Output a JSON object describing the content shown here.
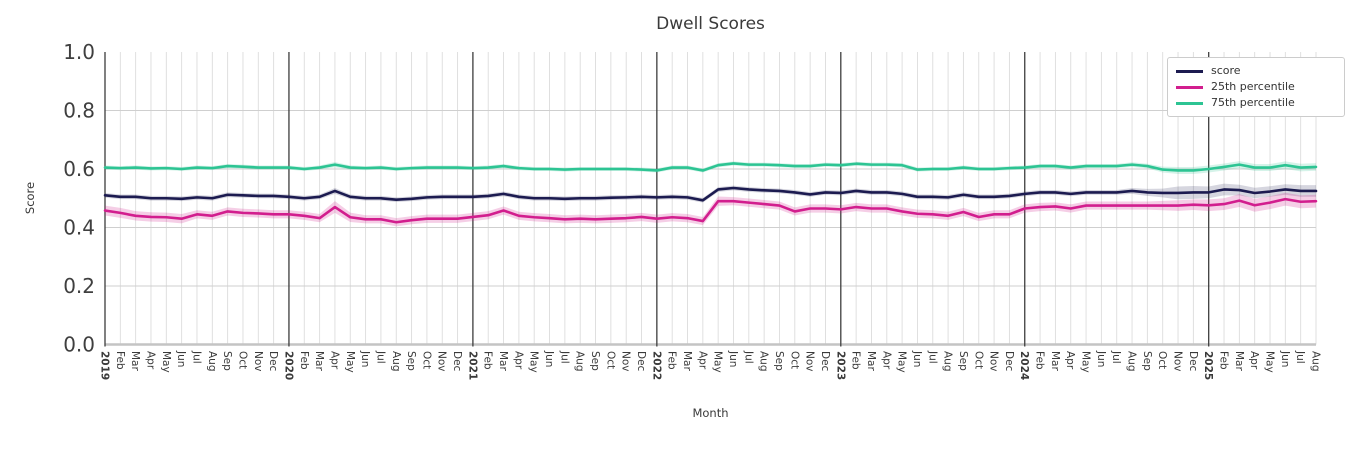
{
  "chart_data": {
    "type": "line",
    "title": "Dwell Scores",
    "xlabel": "Month",
    "ylabel": "Score",
    "ylim": [
      0.0,
      1.0
    ],
    "ytick_labels": [
      "0.0",
      "0.2",
      "0.4",
      "0.6",
      "0.8",
      "1.0"
    ],
    "ytick_values": [
      0.0,
      0.2,
      0.4,
      0.6,
      0.8,
      1.0
    ],
    "grid": "light monthly vertical gridlines, horizontal gridlines every 0.2, dark vertical separators at each January",
    "legend_position": "upper right",
    "x_labels": [
      "2019",
      "Feb",
      "Mar",
      "Apr",
      "May",
      "Jun",
      "Jul",
      "Aug",
      "Sep",
      "Oct",
      "Nov",
      "Dec",
      "2020",
      "Feb",
      "Mar",
      "Apr",
      "May",
      "Jun",
      "Jul",
      "Aug",
      "Sep",
      "Oct",
      "Nov",
      "Dec",
      "2021",
      "Feb",
      "Mar",
      "Apr",
      "May",
      "Jun",
      "Jul",
      "Aug",
      "Sep",
      "Oct",
      "Nov",
      "Dec",
      "2022",
      "Feb",
      "Mar",
      "Apr",
      "May",
      "Jun",
      "Jul",
      "Aug",
      "Sep",
      "Oct",
      "Nov",
      "Dec",
      "2023",
      "Feb",
      "Mar",
      "Apr",
      "May",
      "Jun",
      "Jul",
      "Aug",
      "Sep",
      "Oct",
      "Nov",
      "Dec",
      "2024",
      "Feb",
      "Mar",
      "Apr",
      "May",
      "Jun",
      "Jul",
      "Aug",
      "Sep",
      "Oct",
      "Nov",
      "Dec",
      "2025",
      "Feb",
      "Mar",
      "Apr",
      "May",
      "Jun",
      "Jul",
      "Aug"
    ],
    "year_start_indices": [
      0,
      12,
      24,
      36,
      48,
      60,
      72
    ],
    "series": [
      {
        "name": "score",
        "color": "#1c1b50",
        "band_opacity": 0.18,
        "values": [
          0.51,
          0.505,
          0.505,
          0.5,
          0.5,
          0.498,
          0.503,
          0.5,
          0.512,
          0.51,
          0.508,
          0.508,
          0.505,
          0.5,
          0.505,
          0.525,
          0.505,
          0.5,
          0.5,
          0.495,
          0.498,
          0.503,
          0.505,
          0.505,
          0.505,
          0.508,
          0.515,
          0.505,
          0.5,
          0.5,
          0.498,
          0.5,
          0.5,
          0.502,
          0.503,
          0.505,
          0.503,
          0.505,
          0.503,
          0.493,
          0.53,
          0.535,
          0.53,
          0.527,
          0.525,
          0.52,
          0.513,
          0.52,
          0.518,
          0.525,
          0.52,
          0.52,
          0.515,
          0.505,
          0.505,
          0.503,
          0.512,
          0.505,
          0.505,
          0.508,
          0.515,
          0.52,
          0.52,
          0.515,
          0.52,
          0.52,
          0.52,
          0.525,
          0.52,
          0.518,
          0.518,
          0.52,
          0.52,
          0.53,
          0.528,
          0.518,
          0.523,
          0.53,
          0.525,
          0.525
        ],
        "band": [
          0.008,
          0.008,
          0.008,
          0.008,
          0.008,
          0.008,
          0.008,
          0.008,
          0.008,
          0.008,
          0.008,
          0.008,
          0.008,
          0.008,
          0.008,
          0.01,
          0.008,
          0.008,
          0.008,
          0.008,
          0.008,
          0.008,
          0.008,
          0.008,
          0.008,
          0.008,
          0.008,
          0.008,
          0.008,
          0.008,
          0.008,
          0.008,
          0.008,
          0.008,
          0.008,
          0.008,
          0.008,
          0.008,
          0.008,
          0.008,
          0.008,
          0.008,
          0.008,
          0.008,
          0.008,
          0.008,
          0.008,
          0.008,
          0.008,
          0.008,
          0.008,
          0.008,
          0.008,
          0.008,
          0.008,
          0.008,
          0.008,
          0.008,
          0.008,
          0.008,
          0.008,
          0.008,
          0.008,
          0.008,
          0.008,
          0.008,
          0.008,
          0.01,
          0.012,
          0.015,
          0.022,
          0.022,
          0.02,
          0.02,
          0.018,
          0.018,
          0.018,
          0.018,
          0.02,
          0.02
        ]
      },
      {
        "name": "25th percentile",
        "color": "#d21e8e",
        "band_opacity": 0.22,
        "values": [
          0.458,
          0.45,
          0.44,
          0.436,
          0.435,
          0.43,
          0.445,
          0.44,
          0.455,
          0.45,
          0.448,
          0.445,
          0.445,
          0.44,
          0.432,
          0.47,
          0.435,
          0.428,
          0.428,
          0.418,
          0.425,
          0.43,
          0.43,
          0.43,
          0.436,
          0.442,
          0.458,
          0.44,
          0.435,
          0.432,
          0.428,
          0.43,
          0.428,
          0.43,
          0.432,
          0.436,
          0.43,
          0.435,
          0.432,
          0.422,
          0.49,
          0.49,
          0.485,
          0.48,
          0.475,
          0.455,
          0.465,
          0.465,
          0.462,
          0.47,
          0.465,
          0.465,
          0.455,
          0.447,
          0.445,
          0.44,
          0.453,
          0.436,
          0.445,
          0.445,
          0.465,
          0.47,
          0.472,
          0.465,
          0.475,
          0.475,
          0.475,
          0.475,
          0.475,
          0.475,
          0.475,
          0.478,
          0.476,
          0.48,
          0.492,
          0.476,
          0.485,
          0.497,
          0.488,
          0.49
        ],
        "band": [
          0.017,
          0.017,
          0.016,
          0.016,
          0.016,
          0.016,
          0.014,
          0.014,
          0.014,
          0.014,
          0.014,
          0.014,
          0.014,
          0.014,
          0.014,
          0.02,
          0.016,
          0.014,
          0.014,
          0.014,
          0.014,
          0.014,
          0.014,
          0.014,
          0.014,
          0.014,
          0.014,
          0.014,
          0.014,
          0.014,
          0.014,
          0.014,
          0.014,
          0.014,
          0.014,
          0.014,
          0.014,
          0.014,
          0.014,
          0.014,
          0.016,
          0.014,
          0.014,
          0.014,
          0.014,
          0.014,
          0.014,
          0.014,
          0.014,
          0.014,
          0.014,
          0.014,
          0.014,
          0.014,
          0.014,
          0.014,
          0.014,
          0.014,
          0.014,
          0.014,
          0.014,
          0.014,
          0.014,
          0.014,
          0.014,
          0.014,
          0.014,
          0.014,
          0.014,
          0.016,
          0.018,
          0.018,
          0.02,
          0.02,
          0.022,
          0.022,
          0.022,
          0.022,
          0.022,
          0.022
        ]
      },
      {
        "name": "75th percentile",
        "color": "#2dc493",
        "band_opacity": 0.2,
        "values": [
          0.605,
          0.603,
          0.605,
          0.602,
          0.603,
          0.6,
          0.605,
          0.603,
          0.61,
          0.608,
          0.605,
          0.605,
          0.605,
          0.6,
          0.605,
          0.615,
          0.605,
          0.603,
          0.605,
          0.6,
          0.603,
          0.605,
          0.605,
          0.605,
          0.603,
          0.605,
          0.61,
          0.603,
          0.6,
          0.6,
          0.598,
          0.6,
          0.6,
          0.6,
          0.6,
          0.598,
          0.595,
          0.605,
          0.605,
          0.595,
          0.613,
          0.619,
          0.615,
          0.615,
          0.613,
          0.61,
          0.61,
          0.615,
          0.613,
          0.618,
          0.615,
          0.615,
          0.613,
          0.598,
          0.6,
          0.6,
          0.605,
          0.6,
          0.6,
          0.603,
          0.605,
          0.61,
          0.61,
          0.605,
          0.61,
          0.61,
          0.61,
          0.615,
          0.61,
          0.598,
          0.595,
          0.595,
          0.6,
          0.607,
          0.615,
          0.605,
          0.605,
          0.613,
          0.605,
          0.607
        ],
        "band": [
          0.007,
          0.007,
          0.007,
          0.007,
          0.007,
          0.007,
          0.007,
          0.007,
          0.007,
          0.007,
          0.007,
          0.007,
          0.007,
          0.007,
          0.007,
          0.009,
          0.007,
          0.007,
          0.007,
          0.007,
          0.007,
          0.007,
          0.007,
          0.007,
          0.007,
          0.007,
          0.007,
          0.007,
          0.007,
          0.007,
          0.007,
          0.007,
          0.007,
          0.007,
          0.007,
          0.007,
          0.007,
          0.007,
          0.007,
          0.007,
          0.007,
          0.007,
          0.007,
          0.007,
          0.007,
          0.007,
          0.007,
          0.007,
          0.007,
          0.007,
          0.007,
          0.007,
          0.007,
          0.007,
          0.007,
          0.007,
          0.007,
          0.007,
          0.007,
          0.007,
          0.007,
          0.007,
          0.007,
          0.007,
          0.007,
          0.007,
          0.007,
          0.008,
          0.008,
          0.01,
          0.012,
          0.012,
          0.012,
          0.012,
          0.012,
          0.012,
          0.012,
          0.013,
          0.013,
          0.013
        ]
      }
    ],
    "style": {
      "month_grid_color": "#dcdcdc",
      "h_grid_color": "#cfcfcf",
      "baseline_color": "#c4c4c4",
      "year_line_color": "#3d3d3d",
      "tick_label_color": "#3a3a3a",
      "ytick_label_color": "#3f3f3f"
    }
  }
}
